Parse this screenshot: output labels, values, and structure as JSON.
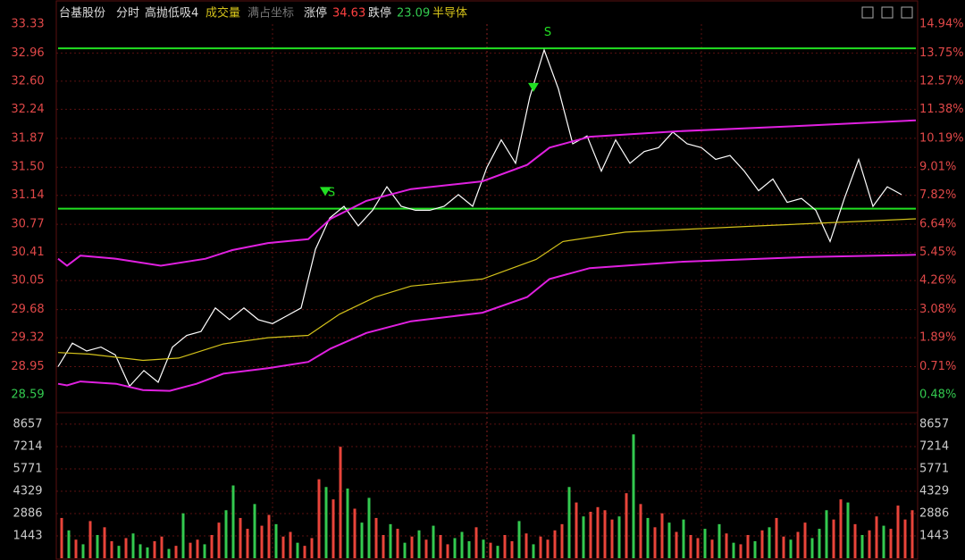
{
  "header": {
    "stock": "台基股份",
    "mode": "分时",
    "indicator": "高抛低吸4",
    "volume_label": "成交量",
    "coord_label": "满占坐标",
    "limit_up_label": "涨停",
    "limit_up": "34.63",
    "limit_down_label": "跌停",
    "limit_down": "23.09",
    "sector": "半导体"
  },
  "chart_data": [
    {
      "type": "line",
      "xlim": [
        0,
        240
      ],
      "ylim": [
        28.59,
        33.33
      ],
      "yticks": [
        28.59,
        28.95,
        29.32,
        29.68,
        30.05,
        30.41,
        30.77,
        31.14,
        {
          "value": 31.5,
          "label": "31.50"
        },
        31.87,
        32.24,
        {
          "value": 32.6,
          "label": "32.60"
        },
        32.96,
        33.33
      ],
      "y2_labels": [
        "0.48%",
        "0.71%",
        "1.89%",
        "3.08%",
        "4.26%",
        "5.45%",
        "6.64%",
        "7.82%",
        "9.01%",
        "10.19%",
        "11.38%",
        "12.57%",
        "13.75%",
        "14.94%"
      ],
      "grid": true,
      "series": [
        {
          "color": "#ffffff",
          "x": [
            0,
            4,
            8,
            12,
            16,
            20,
            24,
            28,
            32,
            36,
            40,
            44,
            48,
            52,
            56,
            60,
            64,
            68,
            72,
            76,
            80,
            84,
            88,
            92,
            96,
            100,
            104,
            108,
            112,
            116,
            120,
            124,
            128,
            132,
            136,
            140,
            144,
            148,
            152,
            156,
            160,
            164,
            168,
            172,
            176,
            180,
            184,
            188,
            192,
            196,
            200,
            204,
            208,
            212,
            216,
            220,
            224,
            228,
            232,
            236
          ],
          "values": [
            28.95,
            29.25,
            29.15,
            29.2,
            29.1,
            28.7,
            28.9,
            28.75,
            29.2,
            29.35,
            29.4,
            29.7,
            29.55,
            29.7,
            29.55,
            29.5,
            29.6,
            29.7,
            30.45,
            30.85,
            31.0,
            30.75,
            30.95,
            31.25,
            31.0,
            30.95,
            30.95,
            31.0,
            31.15,
            31.0,
            31.5,
            31.85,
            31.55,
            32.4,
            33.0,
            32.5,
            31.8,
            31.9,
            31.45,
            31.85,
            31.55,
            31.7,
            31.75,
            31.95,
            31.8,
            31.75,
            31.6,
            31.65,
            31.45,
            31.2,
            31.35,
            31.05,
            31.1,
            30.95,
            30.55,
            31.1,
            31.6,
            31.0,
            31.25,
            31.15
          ]
        },
        {
          "color": "#d4c21a",
          "x": [
            0,
            8.75,
            23.75,
            33.75,
            46.25,
            58.75,
            70,
            78.75,
            88.75,
            98.75,
            118.75,
            133.75,
            141.25,
            158.75,
            196.25,
            240
          ],
          "values": [
            29.13,
            29.11,
            29.03,
            29.06,
            29.24,
            29.32,
            29.35,
            29.62,
            29.84,
            29.98,
            30.07,
            30.32,
            30.55,
            30.67,
            30.75,
            30.84
          ]
        },
        {
          "color": "#e020e0",
          "x": [
            0,
            2.5,
            6.25,
            16.25,
            28.75,
            41.25,
            48.75,
            58.75,
            70,
            76.25,
            86.25,
            98.75,
            118.75,
            131.25,
            137.5,
            148.75,
            173.75,
            208.75,
            240
          ],
          "values": [
            30.33,
            30.24,
            30.37,
            30.33,
            30.24,
            30.33,
            30.44,
            30.53,
            30.58,
            30.84,
            31.07,
            31.22,
            31.32,
            31.53,
            31.75,
            31.89,
            31.96,
            32.03,
            32.1
          ]
        },
        {
          "color": "#e020e0",
          "x": [
            0,
            2.5,
            6.25,
            16.25,
            23.75,
            31.25,
            38.75,
            46.25,
            58.75,
            70,
            76.25,
            86.25,
            98.75,
            118.75,
            131.25,
            137.5,
            148.75,
            173.75,
            208.75,
            240
          ],
          "values": [
            28.73,
            28.71,
            28.76,
            28.73,
            28.65,
            28.64,
            28.73,
            28.86,
            28.93,
            29.01,
            29.18,
            29.38,
            29.53,
            29.64,
            29.84,
            30.07,
            30.21,
            30.29,
            30.35,
            30.38
          ]
        }
      ],
      "hlines": [
        {
          "value": 33.02,
          "color": "#22e022"
        },
        {
          "value": 30.97,
          "color": "#22e022"
        }
      ],
      "annotations": [
        {
          "text": "S",
          "x": 137,
          "y": 33.22
        },
        {
          "text": "S",
          "x": 76.5,
          "y": 31.17
        }
      ],
      "markers": [
        {
          "x": 133,
          "y": 32.52
        },
        {
          "x": 74.75,
          "y": 31.19
        }
      ],
      "marker_color": "#22e022"
    },
    {
      "type": "bar",
      "ylim": [
        0,
        9230
      ],
      "yticks": [
        1443,
        2886,
        4329,
        5771,
        7214,
        8657
      ],
      "grid": true,
      "colors": {
        "r": "#e8443a",
        "g": "#33c94f"
      },
      "direction": "rgrgrgrrgrgggrrgrgrrgrrggrrgrrgrrgrrrgrrgrggrrgrgrgrgrrgggrgrgrrgrgrrrrgrgrrrrgrgrgrrgrgrrgrgrgrrgrgrrgrrgggrrgrgrrgr",
      "values": [
        2600,
        1800,
        1200,
        900,
        2400,
        1500,
        2000,
        1100,
        800,
        1300,
        1600,
        900,
        700,
        1100,
        1400,
        600,
        800,
        2900,
        1000,
        1200,
        900,
        1500,
        2300,
        3100,
        4700,
        2600,
        1900,
        3500,
        2100,
        2800,
        2200,
        1400,
        1700,
        1000,
        800,
        1300,
        5100,
        4600,
        3800,
        7200,
        4500,
        3200,
        2300,
        3900,
        2600,
        1500,
        2200,
        1900,
        1000,
        1400,
        1800,
        1200,
        2100,
        1500,
        900,
        1300,
        1700,
        1100,
        2000,
        1200,
        1000,
        800,
        1500,
        1100,
        2400,
        1600,
        900,
        1400,
        1200,
        1800,
        2200,
        4600,
        3600,
        2700,
        3000,
        3300,
        3100,
        2500,
        2700,
        4200,
        8000,
        3500,
        2600,
        2000,
        2900,
        2300,
        1700,
        2500,
        1500,
        1300,
        1900,
        1200,
        2200,
        1600,
        1000,
        900,
        1500,
        1100,
        1800,
        2000,
        2600,
        1400,
        1200,
        1700,
        2300,
        1300,
        1900,
        3100,
        2500,
        3800,
        3600,
        2200,
        1500,
        1800,
        2700,
        2100,
        1900,
        3400,
        2500,
        3100
      ]
    }
  ]
}
